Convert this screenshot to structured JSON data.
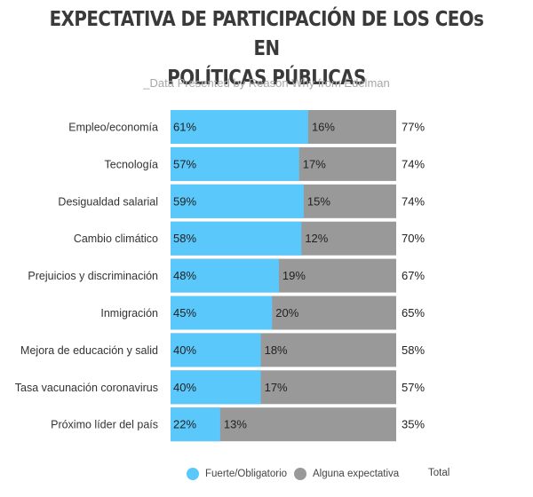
{
  "title_line1": "EXPECTATIVA DE PARTICIPACIÓN DE LOS CEOs EN",
  "title_line2": "POLÍTICAS PÚBLICAS",
  "subtitle": "_Data Presented by Reason Why from Edelman",
  "legend": {
    "strong": "Fuerte/Obligatorio",
    "some": "Alguna expectativa",
    "total": "Total"
  },
  "colors": {
    "strong": "#5ac8fa",
    "some": "#999999",
    "background": "#ffffff"
  },
  "chart_data": {
    "type": "bar",
    "orientation": "horizontal",
    "stacked": true,
    "categories": [
      "Empleo/economía",
      "Tecnología",
      "Desigualdad salarial",
      "Cambio climático",
      "Prejuicios y discriminación",
      "Inmigración",
      "Mejora de educación y salid",
      "Tasa vacunación coronavirus",
      "Próximo líder del país"
    ],
    "series": [
      {
        "name": "Fuerte/Obligatorio",
        "values": [
          61,
          57,
          59,
          58,
          48,
          45,
          40,
          40,
          22
        ]
      },
      {
        "name": "Alguna expectativa",
        "values": [
          16,
          17,
          15,
          12,
          19,
          20,
          18,
          17,
          13
        ]
      }
    ],
    "totals": [
      77,
      74,
      74,
      70,
      67,
      65,
      58,
      57,
      35
    ],
    "unit": "%",
    "legend_position": "bottom",
    "grid": false
  }
}
